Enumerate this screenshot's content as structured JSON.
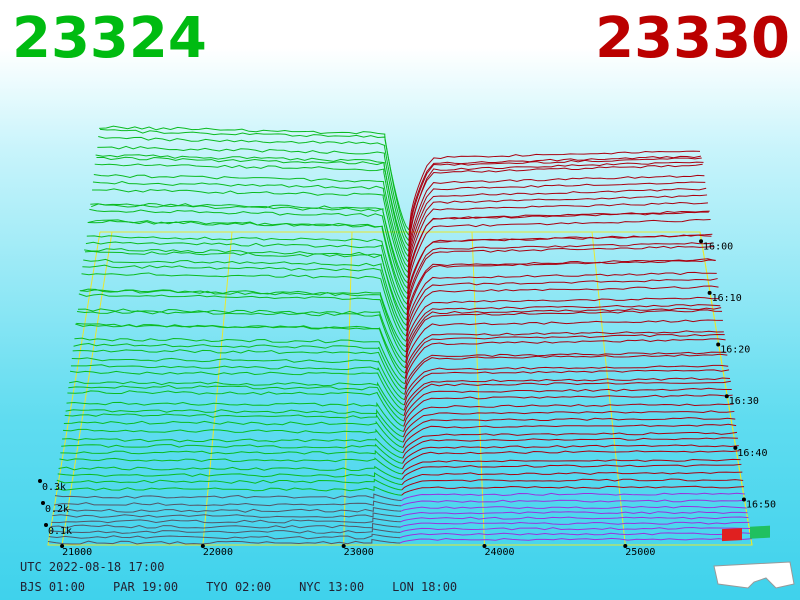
{
  "header": {
    "bid": "23324",
    "ask": "23330"
  },
  "price_axis": {
    "ticks": [
      "21000",
      "22000",
      "23000",
      "24000",
      "25000"
    ]
  },
  "depth_axis": {
    "ticks": [
      "0.1k",
      "0.2k",
      "0.3k"
    ]
  },
  "time_axis": {
    "ticks": [
      "16:00",
      "16:10",
      "16:20",
      "16:30",
      "16:40",
      "16:50"
    ]
  },
  "footer": {
    "utc": "UTC 2022-08-18 17:00",
    "zones": [
      "BJS 01:00",
      "PAR 19:00",
      "TYO 02:00",
      "NYC 13:00",
      "LON 18:00"
    ]
  }
}
